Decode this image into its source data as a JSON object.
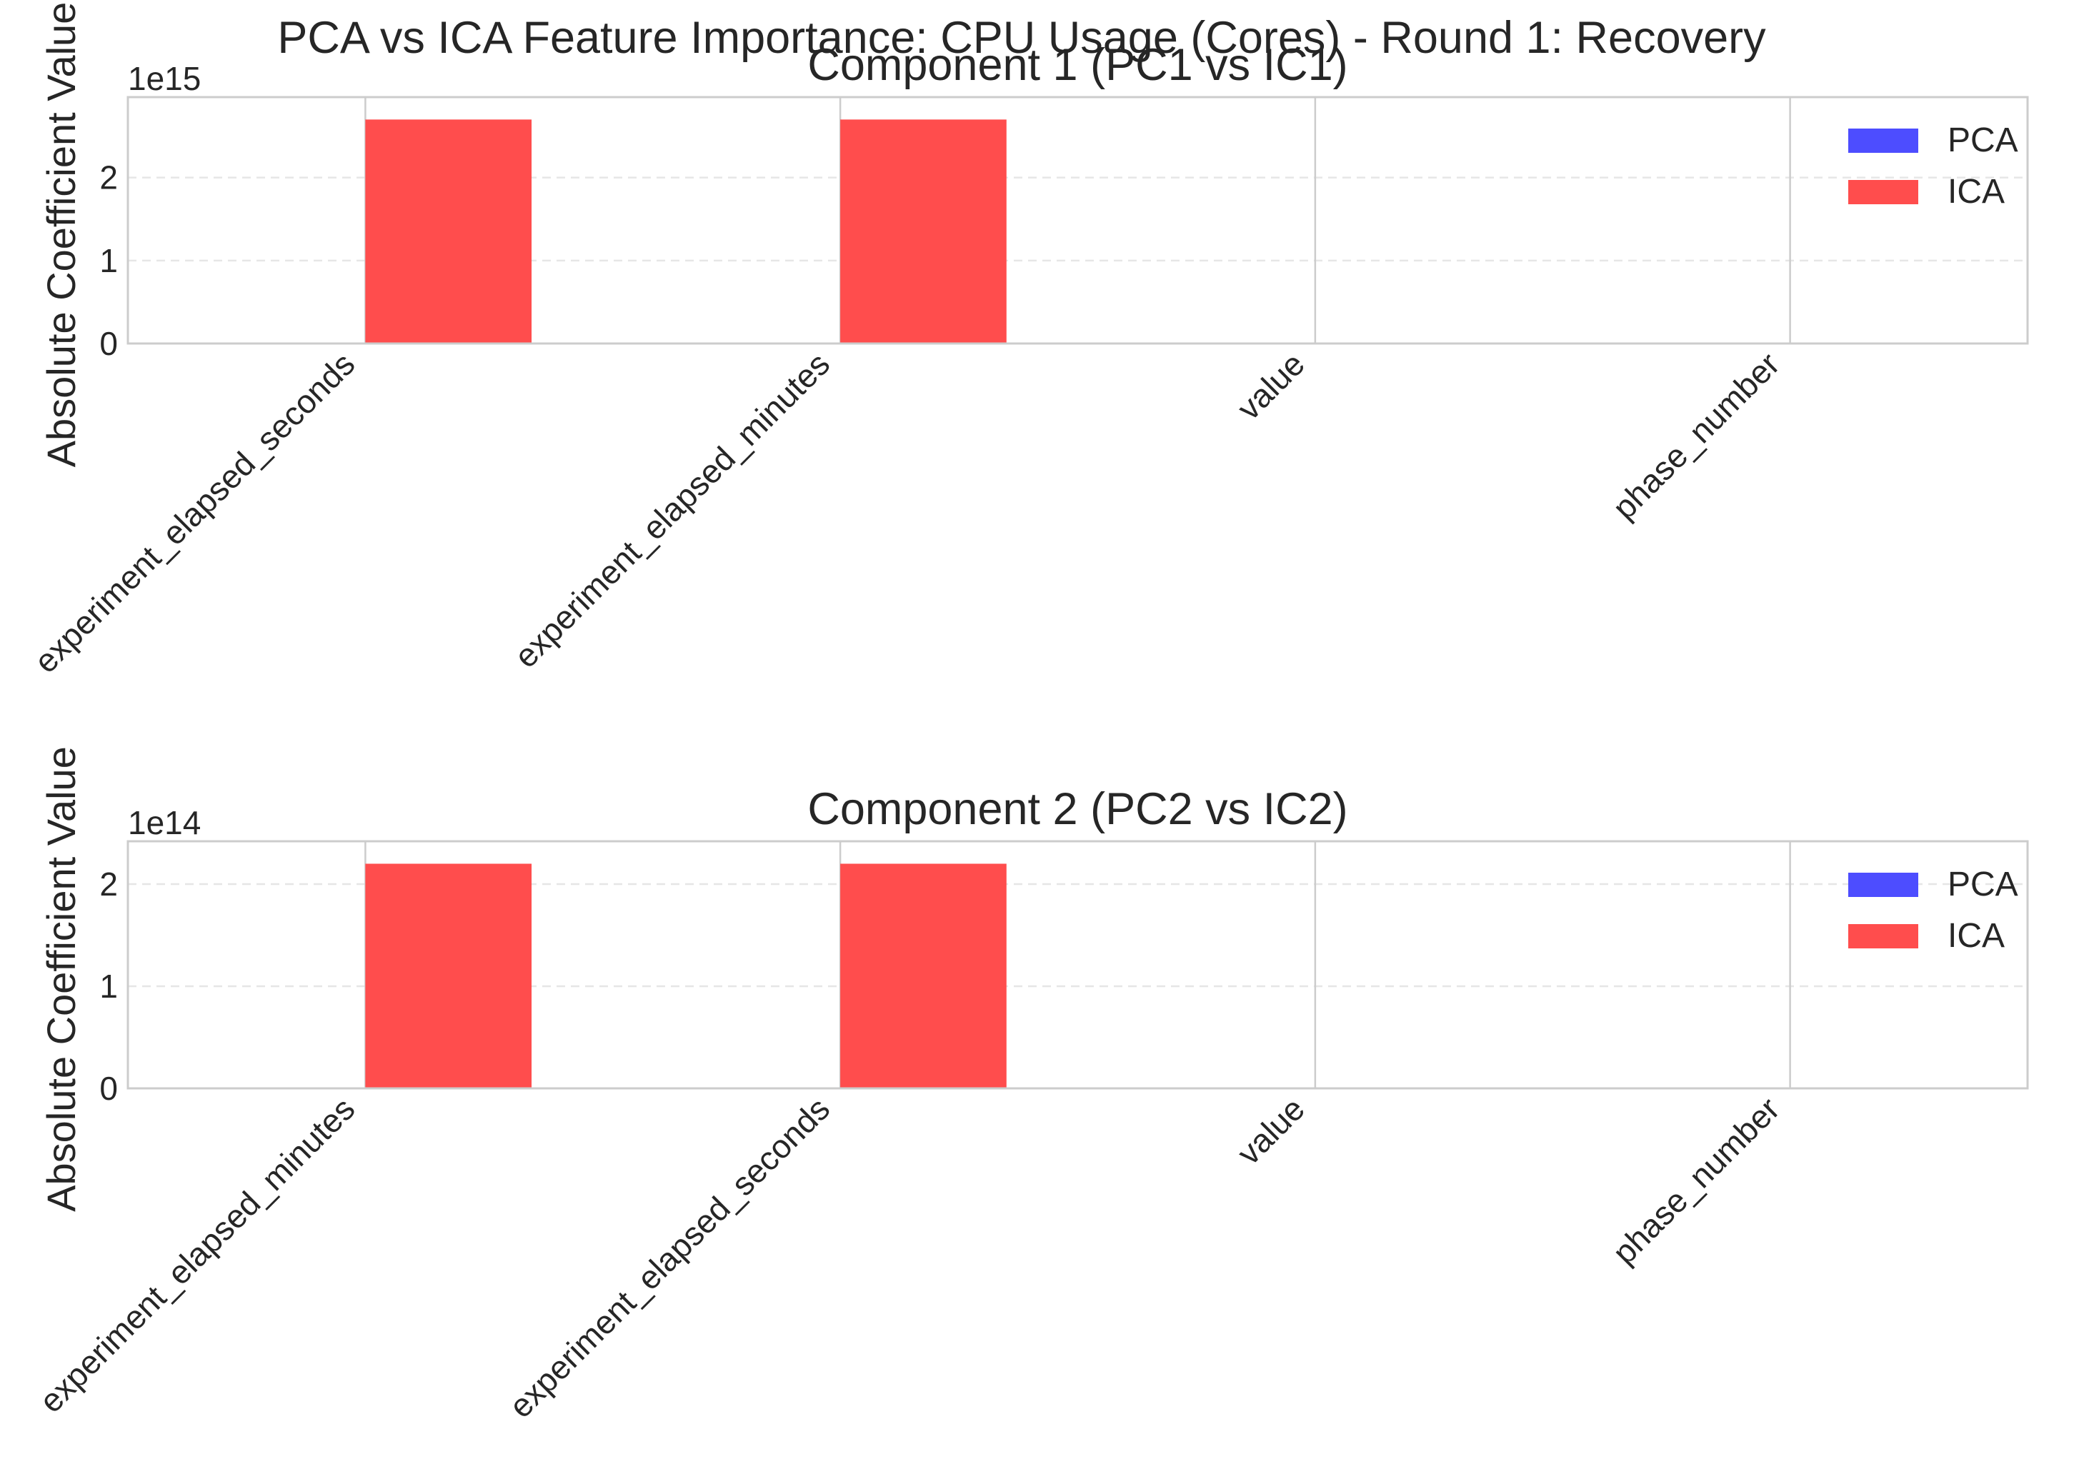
{
  "chart_data": {
    "title": "PCA vs ICA Feature Importance: CPU Usage (Cores) - Round 1: Recovery",
    "colors": {
      "PCA": "#4d4dff",
      "ICA": "#ff4d4d"
    },
    "charts": [
      {
        "type": "bar",
        "title": "Component 1 (PC1 vs IC1)",
        "ylabel": "Absolute Coefficient Value",
        "y_scale_label": "1e15",
        "y_scale": 1000000000000000.0,
        "ylim": [
          0,
          2.97
        ],
        "yticks": [
          0,
          1,
          2
        ],
        "categories": [
          "experiment_elapsed_seconds",
          "experiment_elapsed_minutes",
          "value",
          "phase_number"
        ],
        "series": [
          {
            "name": "PCA",
            "values": [
              0,
              0,
              0,
              0
            ]
          },
          {
            "name": "ICA",
            "values": [
              2.7,
              2.7,
              0,
              0
            ]
          }
        ],
        "legend": "top-right",
        "grid": true
      },
      {
        "type": "bar",
        "title": "Component 2 (PC2 vs IC2)",
        "ylabel": "Absolute Coefficient Value",
        "y_scale_label": "1e14",
        "y_scale": 100000000000000.0,
        "ylim": [
          0,
          2.42
        ],
        "yticks": [
          0,
          1,
          2
        ],
        "categories": [
          "experiment_elapsed_minutes",
          "experiment_elapsed_seconds",
          "value",
          "phase_number"
        ],
        "series": [
          {
            "name": "PCA",
            "values": [
              0,
              0,
              0,
              0
            ]
          },
          {
            "name": "ICA",
            "values": [
              2.2,
              2.2,
              0,
              0
            ]
          }
        ],
        "legend": "top-right",
        "grid": true
      }
    ]
  }
}
